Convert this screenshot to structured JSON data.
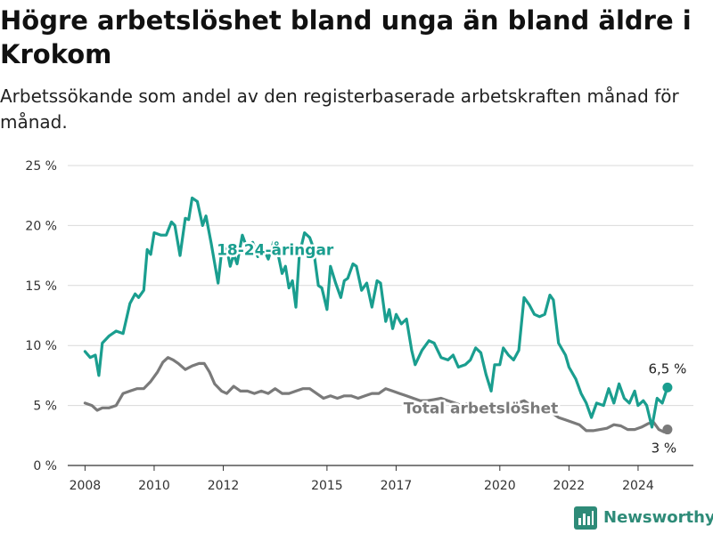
{
  "title": "Högre arbetslöshet bland unga än bland äldre i Krokom",
  "subtitle": "Arbetssökande som andel av den registerbaserade arbetskraften månad för månad.",
  "brand": {
    "name": "Newsworthy",
    "icon": "bar-chart-logo-icon",
    "color": "#2e8b78"
  },
  "colors": {
    "youth": "#1a9e8f",
    "total": "#7a7a7a",
    "grid": "#d9d9d9",
    "axis": "#333333"
  },
  "chart_data": {
    "type": "line",
    "xlim": [
      2007.5,
      2025.6
    ],
    "ylim": [
      0,
      25
    ],
    "x_ticks": [
      2008,
      2010,
      2012,
      2015,
      2017,
      2020,
      2022,
      2024
    ],
    "x_tick_labels": [
      "2008",
      "2010",
      "2012",
      "2015",
      "2017",
      "2020",
      "2022",
      "2024"
    ],
    "y_ticks": [
      0,
      5,
      10,
      15,
      20,
      25
    ],
    "y_tick_labels": [
      "0 %",
      "5 %",
      "10 %",
      "15 %",
      "20 %",
      "25 %"
    ],
    "grid": true,
    "series": [
      {
        "name": "18-24-åringar",
        "color": "#1a9e8f",
        "end_label": "6,5 %",
        "points": [
          [
            2008.0,
            9.5
          ],
          [
            2008.15,
            9.0
          ],
          [
            2008.3,
            9.2
          ],
          [
            2008.4,
            7.5
          ],
          [
            2008.5,
            10.2
          ],
          [
            2008.7,
            10.8
          ],
          [
            2008.9,
            11.2
          ],
          [
            2009.1,
            11.0
          ],
          [
            2009.3,
            13.5
          ],
          [
            2009.45,
            14.3
          ],
          [
            2009.55,
            14.0
          ],
          [
            2009.7,
            14.6
          ],
          [
            2009.8,
            18.0
          ],
          [
            2009.9,
            17.6
          ],
          [
            2010.0,
            19.4
          ],
          [
            2010.2,
            19.2
          ],
          [
            2010.35,
            19.2
          ],
          [
            2010.5,
            20.3
          ],
          [
            2010.6,
            20.0
          ],
          [
            2010.75,
            17.5
          ],
          [
            2010.9,
            20.6
          ],
          [
            2011.0,
            20.5
          ],
          [
            2011.1,
            22.3
          ],
          [
            2011.25,
            22.0
          ],
          [
            2011.4,
            20.0
          ],
          [
            2011.5,
            20.8
          ],
          [
            2011.65,
            18.5
          ],
          [
            2011.85,
            15.2
          ],
          [
            2011.95,
            17.8
          ],
          [
            2012.1,
            18.1
          ],
          [
            2012.2,
            16.6
          ],
          [
            2012.3,
            17.6
          ],
          [
            2012.4,
            16.8
          ],
          [
            2012.55,
            19.2
          ],
          [
            2012.7,
            18.0
          ],
          [
            2012.85,
            18.6
          ],
          [
            2013.0,
            17.4
          ],
          [
            2013.15,
            18.2
          ],
          [
            2013.3,
            17.2
          ],
          [
            2013.45,
            18.6
          ],
          [
            2013.6,
            17.4
          ],
          [
            2013.7,
            16.0
          ],
          [
            2013.8,
            16.6
          ],
          [
            2013.9,
            14.8
          ],
          [
            2014.0,
            15.4
          ],
          [
            2014.1,
            13.2
          ],
          [
            2014.2,
            17.6
          ],
          [
            2014.35,
            19.4
          ],
          [
            2014.5,
            19.0
          ],
          [
            2014.6,
            18.2
          ],
          [
            2014.75,
            15.0
          ],
          [
            2014.85,
            14.8
          ],
          [
            2015.0,
            13.0
          ],
          [
            2015.1,
            16.6
          ],
          [
            2015.25,
            15.2
          ],
          [
            2015.4,
            14.0
          ],
          [
            2015.5,
            15.4
          ],
          [
            2015.6,
            15.6
          ],
          [
            2015.75,
            16.8
          ],
          [
            2015.85,
            16.6
          ],
          [
            2016.0,
            14.6
          ],
          [
            2016.15,
            15.2
          ],
          [
            2016.3,
            13.2
          ],
          [
            2016.45,
            15.4
          ],
          [
            2016.55,
            15.2
          ],
          [
            2016.7,
            12.0
          ],
          [
            2016.8,
            13.0
          ],
          [
            2016.9,
            11.4
          ],
          [
            2017.0,
            12.6
          ],
          [
            2017.15,
            11.8
          ],
          [
            2017.3,
            12.2
          ],
          [
            2017.45,
            9.6
          ],
          [
            2017.55,
            8.4
          ],
          [
            2017.75,
            9.6
          ],
          [
            2017.95,
            10.4
          ],
          [
            2018.1,
            10.2
          ],
          [
            2018.3,
            9.0
          ],
          [
            2018.5,
            8.8
          ],
          [
            2018.65,
            9.2
          ],
          [
            2018.8,
            8.2
          ],
          [
            2019.0,
            8.4
          ],
          [
            2019.15,
            8.8
          ],
          [
            2019.3,
            9.8
          ],
          [
            2019.45,
            9.4
          ],
          [
            2019.6,
            7.6
          ],
          [
            2019.75,
            6.2
          ],
          [
            2019.85,
            8.4
          ],
          [
            2020.0,
            8.4
          ],
          [
            2020.1,
            9.8
          ],
          [
            2020.25,
            9.2
          ],
          [
            2020.4,
            8.8
          ],
          [
            2020.55,
            9.6
          ],
          [
            2020.7,
            14.0
          ],
          [
            2020.85,
            13.4
          ],
          [
            2021.0,
            12.6
          ],
          [
            2021.15,
            12.4
          ],
          [
            2021.3,
            12.6
          ],
          [
            2021.45,
            14.2
          ],
          [
            2021.55,
            13.8
          ],
          [
            2021.7,
            10.2
          ],
          [
            2021.9,
            9.2
          ],
          [
            2022.0,
            8.2
          ],
          [
            2022.2,
            7.2
          ],
          [
            2022.35,
            6.0
          ],
          [
            2022.5,
            5.2
          ],
          [
            2022.65,
            4.0
          ],
          [
            2022.8,
            5.2
          ],
          [
            2023.0,
            5.0
          ],
          [
            2023.15,
            6.4
          ],
          [
            2023.3,
            5.2
          ],
          [
            2023.45,
            6.8
          ],
          [
            2023.6,
            5.6
          ],
          [
            2023.75,
            5.2
          ],
          [
            2023.9,
            6.2
          ],
          [
            2024.0,
            5.0
          ],
          [
            2024.15,
            5.4
          ],
          [
            2024.25,
            5.0
          ],
          [
            2024.4,
            3.2
          ],
          [
            2024.55,
            5.6
          ],
          [
            2024.7,
            5.2
          ],
          [
            2024.85,
            6.5
          ]
        ]
      },
      {
        "name": "Total arbetslöshet",
        "color": "#7a7a7a",
        "end_label": "3 %",
        "points": [
          [
            2008.0,
            5.2
          ],
          [
            2008.2,
            5.0
          ],
          [
            2008.35,
            4.6
          ],
          [
            2008.5,
            4.8
          ],
          [
            2008.7,
            4.8
          ],
          [
            2008.9,
            5.0
          ],
          [
            2009.1,
            6.0
          ],
          [
            2009.3,
            6.2
          ],
          [
            2009.5,
            6.4
          ],
          [
            2009.7,
            6.4
          ],
          [
            2009.9,
            7.0
          ],
          [
            2010.1,
            7.8
          ],
          [
            2010.25,
            8.6
          ],
          [
            2010.4,
            9.0
          ],
          [
            2010.55,
            8.8
          ],
          [
            2010.7,
            8.5
          ],
          [
            2010.9,
            8.0
          ],
          [
            2011.1,
            8.3
          ],
          [
            2011.3,
            8.5
          ],
          [
            2011.45,
            8.5
          ],
          [
            2011.6,
            7.8
          ],
          [
            2011.75,
            6.8
          ],
          [
            2011.95,
            6.2
          ],
          [
            2012.1,
            6.0
          ],
          [
            2012.3,
            6.6
          ],
          [
            2012.5,
            6.2
          ],
          [
            2012.7,
            6.2
          ],
          [
            2012.9,
            6.0
          ],
          [
            2013.1,
            6.2
          ],
          [
            2013.3,
            6.0
          ],
          [
            2013.5,
            6.4
          ],
          [
            2013.7,
            6.0
          ],
          [
            2013.9,
            6.0
          ],
          [
            2014.1,
            6.2
          ],
          [
            2014.3,
            6.4
          ],
          [
            2014.5,
            6.4
          ],
          [
            2014.7,
            6.0
          ],
          [
            2014.9,
            5.6
          ],
          [
            2015.1,
            5.8
          ],
          [
            2015.3,
            5.6
          ],
          [
            2015.5,
            5.8
          ],
          [
            2015.7,
            5.8
          ],
          [
            2015.9,
            5.6
          ],
          [
            2016.1,
            5.8
          ],
          [
            2016.3,
            6.0
          ],
          [
            2016.5,
            6.0
          ],
          [
            2016.7,
            6.4
          ],
          [
            2016.9,
            6.2
          ],
          [
            2017.1,
            6.0
          ],
          [
            2017.3,
            5.8
          ],
          [
            2017.5,
            5.6
          ],
          [
            2017.7,
            5.4
          ],
          [
            2017.9,
            5.4
          ],
          [
            2018.1,
            5.5
          ],
          [
            2018.3,
            5.6
          ],
          [
            2018.5,
            5.4
          ],
          [
            2018.7,
            5.2
          ],
          [
            2018.9,
            5.0
          ],
          [
            2019.1,
            5.2
          ],
          [
            2019.3,
            5.0
          ],
          [
            2019.5,
            4.8
          ],
          [
            2019.7,
            4.8
          ],
          [
            2019.9,
            4.6
          ],
          [
            2020.1,
            4.8
          ],
          [
            2020.3,
            5.0
          ],
          [
            2020.5,
            5.2
          ],
          [
            2020.7,
            5.4
          ],
          [
            2020.9,
            5.0
          ],
          [
            2021.1,
            4.8
          ],
          [
            2021.3,
            4.6
          ],
          [
            2021.5,
            4.4
          ],
          [
            2021.7,
            4.0
          ],
          [
            2021.9,
            3.8
          ],
          [
            2022.1,
            3.6
          ],
          [
            2022.3,
            3.4
          ],
          [
            2022.5,
            2.9
          ],
          [
            2022.7,
            2.9
          ],
          [
            2022.9,
            3.0
          ],
          [
            2023.1,
            3.1
          ],
          [
            2023.3,
            3.4
          ],
          [
            2023.5,
            3.3
          ],
          [
            2023.7,
            3.0
          ],
          [
            2023.9,
            3.0
          ],
          [
            2024.1,
            3.2
          ],
          [
            2024.3,
            3.5
          ],
          [
            2024.45,
            3.6
          ],
          [
            2024.6,
            3.0
          ],
          [
            2024.75,
            2.8
          ],
          [
            2024.85,
            3.0
          ]
        ]
      }
    ]
  }
}
